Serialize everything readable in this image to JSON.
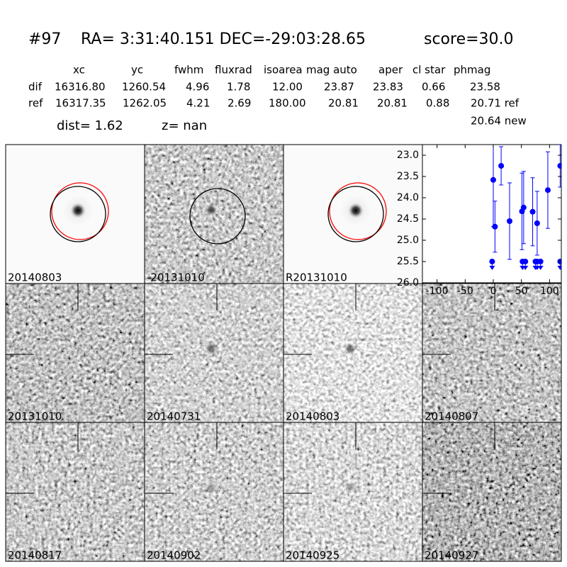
{
  "header": {
    "id": "#97",
    "coords": "RA= 3:31:40.151 DEC=-29:03:28.65",
    "score": "score=30.0",
    "dist": "dist=  1.62",
    "z": "z=   nan",
    "new_mag": "20.64 new"
  },
  "table": {
    "columns": [
      "xc",
      "yc",
      "fwhm",
      "fluxrad",
      "isoarea",
      "mag auto",
      "aper",
      "cl star",
      "phmag"
    ],
    "rows": [
      [
        "dif",
        "16316.80",
        "1260.54",
        "4.96",
        "1.78",
        "12.00",
        "23.87",
        "23.83",
        "0.66",
        "23.58"
      ],
      [
        "ref",
        "16317.35",
        "1262.05",
        "4.21",
        "2.69",
        "180.00",
        "20.81",
        "20.81",
        "0.88",
        "20.71 ref"
      ]
    ]
  },
  "stamps": [
    {
      "label": "20140803"
    },
    {
      "label": "-20131010"
    },
    {
      "label": "R20131010"
    },
    {
      "label": "20131010"
    },
    {
      "label": "20140731"
    },
    {
      "label": "20140803",
      "color": "#ff0000"
    },
    {
      "label": "20140807"
    },
    {
      "label": "20140817"
    },
    {
      "label": "20140902"
    },
    {
      "label": "20140925"
    },
    {
      "label": "20140927"
    }
  ],
  "chart_data": {
    "type": "scatter",
    "color": "#0000ff",
    "x": [
      0,
      3,
      14,
      29,
      51,
      54,
      70,
      78,
      97,
      119
    ],
    "values": [
      23.58,
      24.68,
      23.25,
      24.55,
      24.32,
      24.23,
      24.33,
      24.6,
      23.82,
      23.25
    ],
    "errors": [
      1.1,
      0.6,
      0.45,
      0.9,
      0.9,
      0.85,
      0.8,
      0.75,
      0.9,
      0.5
    ],
    "limits": {
      "x": [
        -2,
        52,
        57,
        75,
        78,
        84,
        119
      ],
      "values": [
        25.5,
        25.5,
        25.5,
        25.5,
        25.5,
        25.5,
        25.5
      ]
    },
    "xlim": [
      -126,
      121
    ],
    "ylim": [
      26.0,
      22.75
    ],
    "xticks": [
      -100,
      -50,
      0,
      50,
      100
    ],
    "yticks": [
      {
        "value": 23.0,
        "label": "23.0"
      },
      {
        "value": 23.5,
        "label": "23.5"
      },
      {
        "value": 24.0,
        "label": "24.0"
      },
      {
        "value": 24.5,
        "label": "24.5"
      },
      {
        "value": 25.0,
        "label": "25.0"
      },
      {
        "value": 25.5,
        "label": "25.5"
      },
      {
        "value": 26.0,
        "label": "26.0"
      }
    ]
  }
}
